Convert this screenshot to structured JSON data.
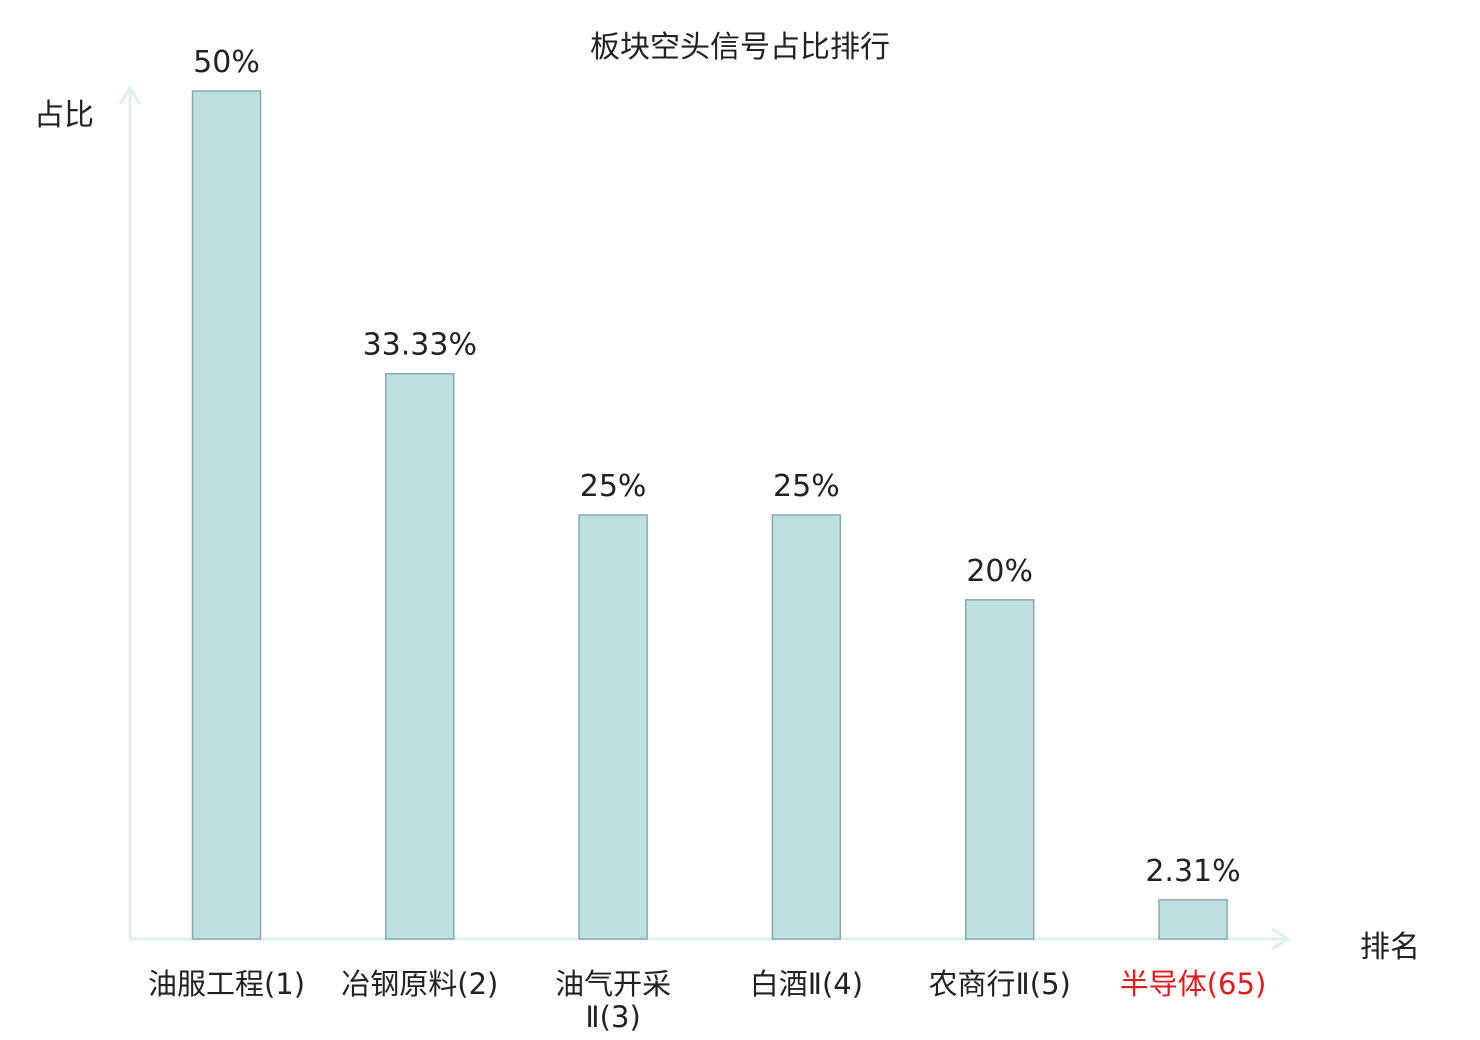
{
  "chart_data": {
    "type": "bar",
    "title": "板块空头信号占比排行",
    "ylabel": "占比",
    "xlabel": "排名",
    "categories": [
      [
        "油服工程(1)"
      ],
      [
        "冶钢原料(2)"
      ],
      [
        "油气开采",
        "Ⅱ(3)"
      ],
      [
        "白酒Ⅱ(4)"
      ],
      [
        "农商行Ⅱ(5)"
      ],
      [
        "半导体(65)"
      ]
    ],
    "values": [
      50,
      33.33,
      25,
      25,
      20,
      2.31
    ],
    "value_labels": [
      "50%",
      "33.33%",
      "25%",
      "25%",
      "20%",
      "2.31%"
    ],
    "highlight_index": 5,
    "ylim": [
      0,
      50
    ],
    "grid": false,
    "legend": "none",
    "colors": {
      "bar_fill": "#bde0e2",
      "bar_stroke": "#8aa8ab",
      "axis": "#dff1ef",
      "text": "#222222",
      "highlight_text": "#e31a1c"
    }
  }
}
